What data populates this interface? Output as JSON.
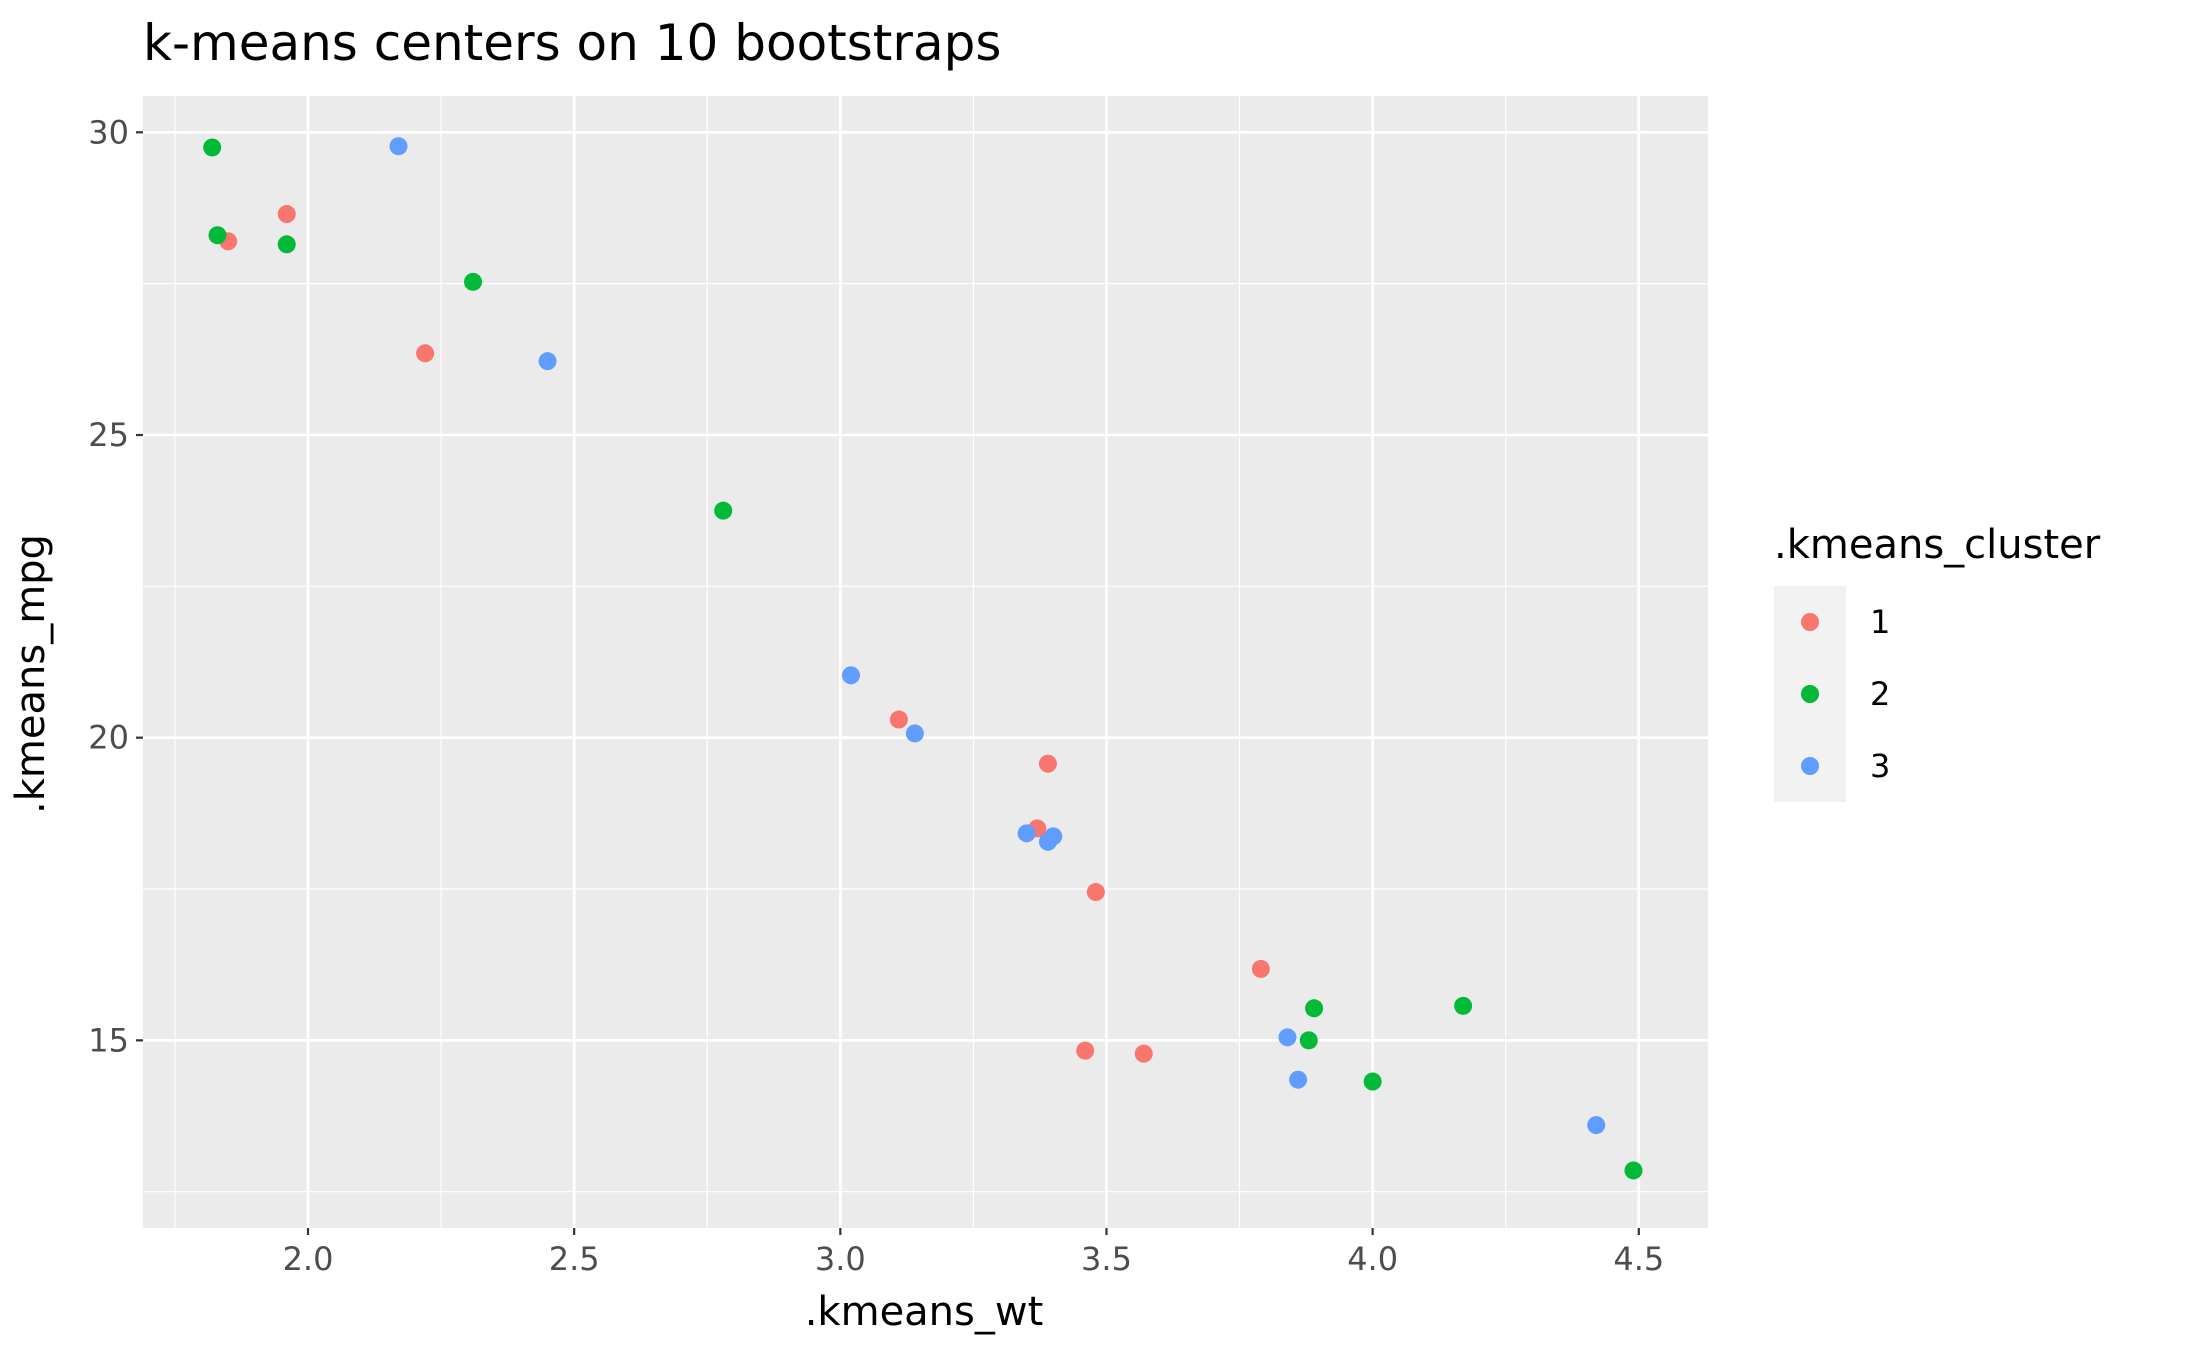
{
  "chart_data": {
    "type": "scatter",
    "title": "k-means centers on 10 bootstraps",
    "xlabel": ".kmeans_wt",
    "ylabel": ".kmeans_mpg",
    "xlim": [
      1.69,
      4.63
    ],
    "ylim": [
      11.9,
      30.6
    ],
    "x_ticks": [
      2.0,
      2.5,
      3.0,
      3.5,
      4.0,
      4.5
    ],
    "x_tick_labels": [
      "2.0",
      "2.5",
      "3.0",
      "3.5",
      "4.0",
      "4.5"
    ],
    "y_ticks": [
      15,
      20,
      25,
      30
    ],
    "y_tick_labels": [
      "15",
      "20",
      "25",
      "30"
    ],
    "grid": true,
    "legend": {
      "title": ".kmeans_cluster",
      "position": "right",
      "entries": [
        {
          "label": "1",
          "color": "#F8766D"
        },
        {
          "label": "2",
          "color": "#00BA38"
        },
        {
          "label": "3",
          "color": "#619CFF"
        }
      ]
    },
    "series": [
      {
        "name": "1",
        "color": "#F8766D",
        "points": [
          [
            1.85,
            28.2
          ],
          [
            1.96,
            28.65
          ],
          [
            2.22,
            26.35
          ],
          [
            3.11,
            20.3
          ],
          [
            3.39,
            19.57
          ],
          [
            3.37,
            18.5
          ],
          [
            3.48,
            17.45
          ],
          [
            3.79,
            16.18
          ],
          [
            3.46,
            14.83
          ],
          [
            3.57,
            14.78
          ]
        ]
      },
      {
        "name": "2",
        "color": "#00BA38",
        "points": [
          [
            1.82,
            29.75
          ],
          [
            1.83,
            28.3
          ],
          [
            1.96,
            28.15
          ],
          [
            2.31,
            27.53
          ],
          [
            2.78,
            23.75
          ],
          [
            3.89,
            15.53
          ],
          [
            3.88,
            15.0
          ],
          [
            4.0,
            14.32
          ],
          [
            4.17,
            15.57
          ],
          [
            4.49,
            12.85
          ]
        ]
      },
      {
        "name": "3",
        "color": "#619CFF",
        "points": [
          [
            2.17,
            29.77
          ],
          [
            2.45,
            26.22
          ],
          [
            3.02,
            21.03
          ],
          [
            3.14,
            20.07
          ],
          [
            3.35,
            18.42
          ],
          [
            3.4,
            18.37
          ],
          [
            3.39,
            18.28
          ],
          [
            3.84,
            15.05
          ],
          [
            3.86,
            14.35
          ],
          [
            4.42,
            13.6
          ]
        ]
      }
    ]
  }
}
